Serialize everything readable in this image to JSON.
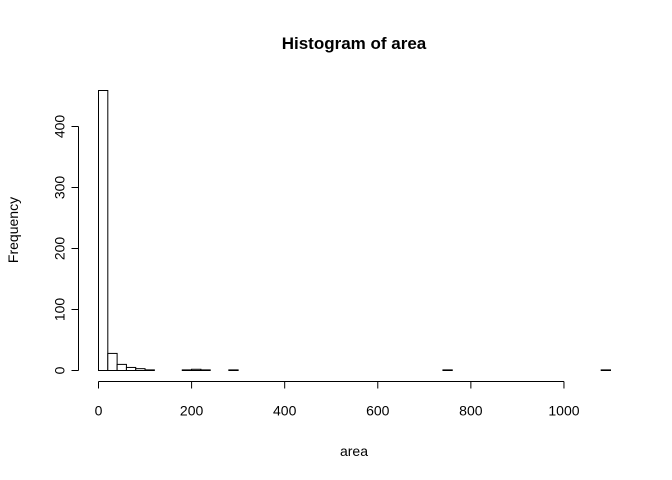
{
  "chart_data": {
    "type": "bar",
    "title": "Histogram of area",
    "xlabel": "area",
    "ylabel": "Frequency",
    "xlim": [
      0,
      1100
    ],
    "ylim": [
      0,
      460
    ],
    "x_ticks": [
      0,
      200,
      400,
      600,
      800,
      1000
    ],
    "y_ticks": [
      0,
      100,
      200,
      300,
      400
    ],
    "bin_width": 20,
    "bins_start": 0,
    "counts": [
      459,
      28,
      10,
      5,
      3,
      1,
      0,
      0,
      0,
      1,
      2,
      1,
      0,
      0,
      1,
      0,
      0,
      0,
      0,
      0,
      0,
      0,
      0,
      0,
      0,
      0,
      0,
      0,
      0,
      0,
      0,
      0,
      0,
      0,
      0,
      0,
      0,
      1,
      0,
      0,
      0,
      0,
      0,
      0,
      0,
      0,
      0,
      0,
      0,
      0,
      0,
      0,
      0,
      0,
      1
    ],
    "grid": false,
    "legend": "none",
    "colors": {
      "bar_fill": "#ffffff",
      "bar_stroke": "#000000",
      "axis": "#000000"
    }
  }
}
